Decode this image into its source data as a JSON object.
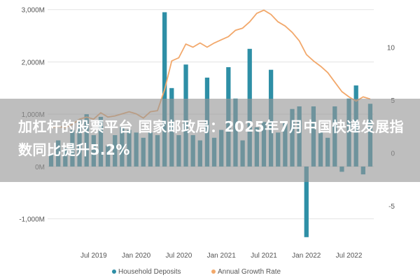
{
  "headline": "加杠杆的股票平台 国家邮政局：2025年7月中国快递发展指数同比提升5.2%",
  "chart_data": {
    "type": "bar",
    "categories": [
      "2019-01",
      "2019-02",
      "2019-03",
      "2019-04",
      "2019-05",
      "2019-06",
      "2019-07",
      "2019-08",
      "2019-09",
      "2019-10",
      "2019-11",
      "2019-12",
      "2020-01",
      "2020-02",
      "2020-03",
      "2020-04",
      "2020-05",
      "2020-06",
      "2020-07",
      "2020-08",
      "2020-09",
      "2020-10",
      "2020-11",
      "2020-12",
      "2021-01",
      "2021-02",
      "2021-03",
      "2021-04",
      "2021-05",
      "2021-06",
      "2021-07",
      "2021-08",
      "2021-09",
      "2021-10",
      "2021-11",
      "2021-12",
      "2022-01",
      "2022-02",
      "2022-03",
      "2022-04",
      "2022-05",
      "2022-06",
      "2022-07",
      "2022-08",
      "2022-09",
      "2022-10"
    ],
    "x_tick_labels": [
      {
        "label": "Jul 2019",
        "index": 6
      },
      {
        "label": "Jan 2020",
        "index": 12
      },
      {
        "label": "Jul 2020",
        "index": 18
      },
      {
        "label": "Jan 2021",
        "index": 24
      },
      {
        "label": "Jul 2021",
        "index": 30
      },
      {
        "label": "Jan 2022",
        "index": 36
      },
      {
        "label": "Jul 2022",
        "index": 42
      }
    ],
    "y_left": {
      "range": [
        -1500,
        3050
      ],
      "ticks": [
        {
          "v": -1000,
          "label": "-1,000M"
        },
        {
          "v": 0,
          "label": "0M"
        },
        {
          "v": 1000,
          "label": "1,000M"
        },
        {
          "v": 2000,
          "label": "2,000M"
        },
        {
          "v": 3000,
          "label": "3,000M"
        }
      ]
    },
    "y_right": {
      "range": [
        -8.7,
        13.8
      ],
      "ticks": [
        {
          "v": -5,
          "label": "-5"
        },
        {
          "v": 0,
          "label": "0"
        },
        {
          "v": 5,
          "label": "5"
        },
        {
          "v": 10,
          "label": "10"
        }
      ]
    },
    "series": [
      {
        "name": "Household Deposits",
        "axis": "left",
        "color": "#2E8FA6",
        "values": [
          250,
          500,
          350,
          700,
          900,
          1000,
          600,
          950,
          400,
          600,
          750,
          700,
          650,
          550,
          650,
          600,
          2950,
          1500,
          600,
          1950,
          600,
          500,
          1700,
          550,
          700,
          1900,
          1300,
          500,
          2250,
          750,
          850,
          1850,
          650,
          850,
          1100,
          1150,
          -1350,
          1150,
          650,
          550,
          1150,
          -100,
          1300,
          1550,
          -150,
          1200
        ]
      },
      {
        "name": "Annual Growth Rate",
        "axis": "right",
        "color": "#F2A86B",
        "values": [
          2.4,
          2.5,
          2.4,
          2.7,
          3.2,
          3.4,
          3.2,
          3.8,
          3.4,
          3.5,
          3.7,
          3.9,
          3.7,
          3.3,
          3.9,
          4.0,
          6.0,
          8.7,
          9.0,
          10.3,
          10.0,
          10.4,
          10.0,
          10.4,
          10.7,
          11.0,
          11.6,
          11.8,
          12.4,
          13.2,
          13.5,
          13.1,
          12.4,
          12.0,
          11.4,
          10.6,
          9.3,
          8.7,
          8.2,
          7.6,
          6.7,
          5.8,
          5.3,
          4.9,
          5.3,
          5.1
        ]
      }
    ],
    "legend": {
      "placement": "bottom"
    },
    "grid": true
  }
}
